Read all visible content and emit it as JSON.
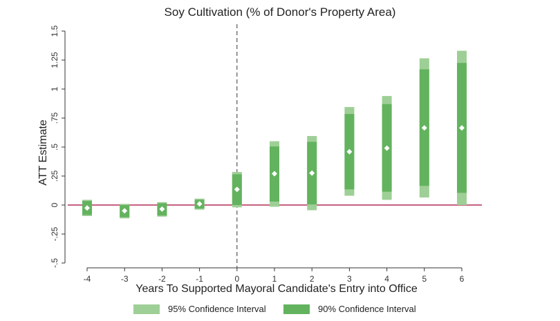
{
  "chart_data": {
    "type": "errorbar",
    "title": "Soy Cultivation (% of Donor's Property Area)",
    "xlabel": "Years To Supported Mayoral Candidate's Entry into Office",
    "ylabel": "ATT Estimate",
    "x_categories": [
      "-4",
      "-3",
      "-2",
      "-1",
      "0",
      "1",
      "2",
      "3",
      "4",
      "5",
      "6"
    ],
    "ylim": [
      -0.5,
      1.5
    ],
    "y_ticks": [
      -0.5,
      -0.25,
      0,
      0.25,
      0.5,
      0.75,
      1,
      1.25,
      1.5
    ],
    "y_tick_labels": [
      "-.5",
      "-.25",
      "0",
      ".25",
      ".5",
      ".75",
      "1",
      "1.25",
      "1.5"
    ],
    "reference_lines": {
      "horizontal_zero_color": "#b22c56",
      "vertical_dashed_at_x": "0"
    },
    "points": [
      {
        "x": "-4",
        "estimate": -0.025,
        "ci95": [
          -0.095,
          0.045
        ],
        "ci90": [
          -0.085,
          0.035
        ]
      },
      {
        "x": "-3",
        "estimate": -0.05,
        "ci95": [
          -0.115,
          0.01
        ],
        "ci90": [
          -0.105,
          0.0
        ]
      },
      {
        "x": "-2",
        "estimate": -0.035,
        "ci95": [
          -0.1,
          0.025
        ],
        "ci90": [
          -0.09,
          0.015
        ]
      },
      {
        "x": "-1",
        "estimate": 0.01,
        "ci95": [
          -0.04,
          0.055
        ],
        "ci90": [
          -0.03,
          0.045
        ]
      },
      {
        "x": "0",
        "estimate": 0.135,
        "ci95": [
          -0.02,
          0.285
        ],
        "ci90": [
          0.0,
          0.265
        ]
      },
      {
        "x": "1",
        "estimate": 0.27,
        "ci95": [
          -0.015,
          0.55
        ],
        "ci90": [
          0.03,
          0.505
        ]
      },
      {
        "x": "2",
        "estimate": 0.275,
        "ci95": [
          -0.045,
          0.595
        ],
        "ci90": [
          0.005,
          0.545
        ]
      },
      {
        "x": "3",
        "estimate": 0.46,
        "ci95": [
          0.08,
          0.845
        ],
        "ci90": [
          0.135,
          0.785
        ]
      },
      {
        "x": "4",
        "estimate": 0.49,
        "ci95": [
          0.045,
          0.94
        ],
        "ci90": [
          0.115,
          0.87
        ]
      },
      {
        "x": "5",
        "estimate": 0.665,
        "ci95": [
          0.065,
          1.265
        ],
        "ci90": [
          0.165,
          1.17
        ]
      },
      {
        "x": "6",
        "estimate": 0.665,
        "ci95": [
          0.0,
          1.33
        ],
        "ci90": [
          0.105,
          1.225
        ]
      }
    ],
    "legend": [
      {
        "label": "95% Confidence Interval",
        "color": "#9ecf96"
      },
      {
        "label": "90% Confidence Interval",
        "color": "#63b35e"
      }
    ],
    "grid": false,
    "legend_position": "bottom"
  }
}
